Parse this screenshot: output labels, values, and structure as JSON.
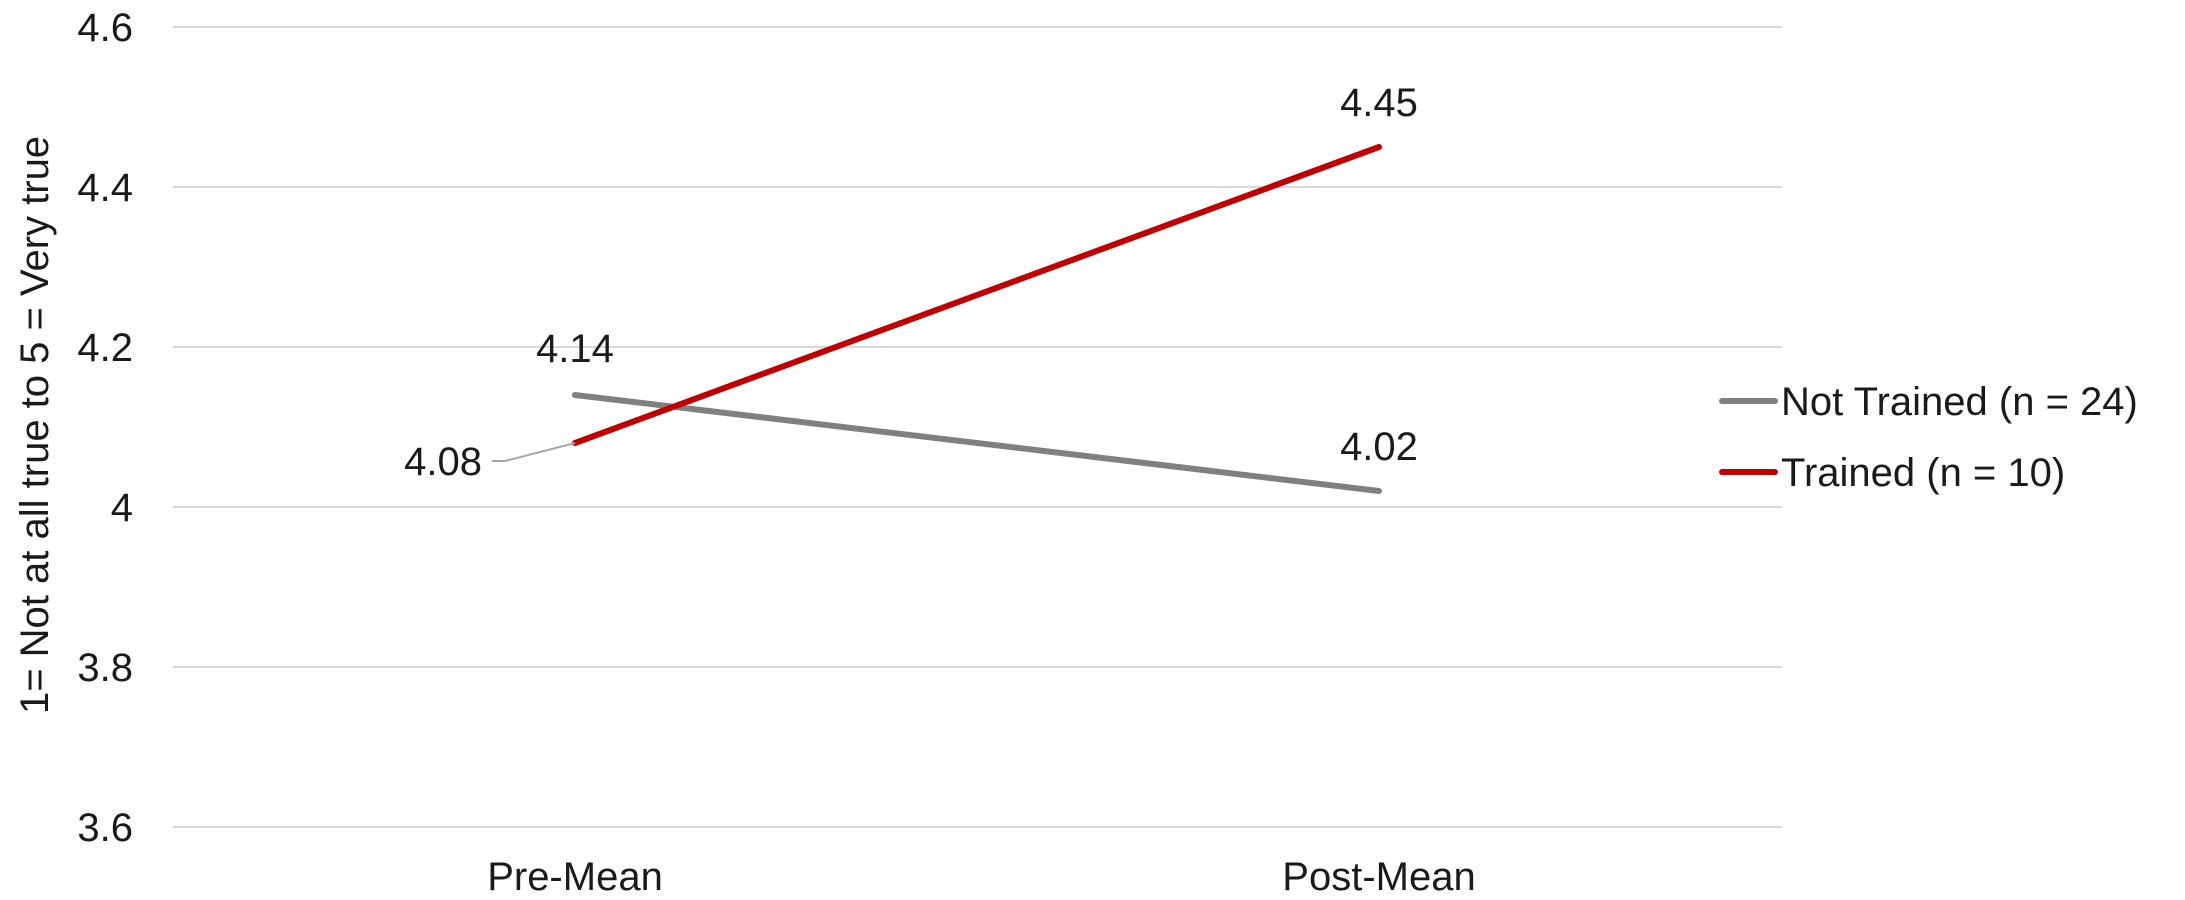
{
  "chart_data": {
    "type": "line",
    "categories": [
      "Pre-Mean",
      "Post-Mean"
    ],
    "series": [
      {
        "name": "Not Trained (n = 24)",
        "values": [
          4.14,
          4.02
        ],
        "labels": [
          "4.14",
          "4.02"
        ],
        "color": "#808080"
      },
      {
        "name": "Trained (n = 10)",
        "values": [
          4.08,
          4.45
        ],
        "labels": [
          "4.08",
          "4.45"
        ],
        "color": "#c00000"
      }
    ],
    "ylabel": "1= Not at all true to 5 = Very true",
    "ylim": [
      3.6,
      4.6
    ],
    "yticks": [
      3.6,
      3.8,
      4,
      4.2,
      4.4,
      4.6
    ],
    "ytick_labels": [
      "3.6",
      "3.8",
      "4",
      "4.2",
      "4.4",
      "4.6"
    ],
    "grid": true,
    "legend_position": "right"
  }
}
